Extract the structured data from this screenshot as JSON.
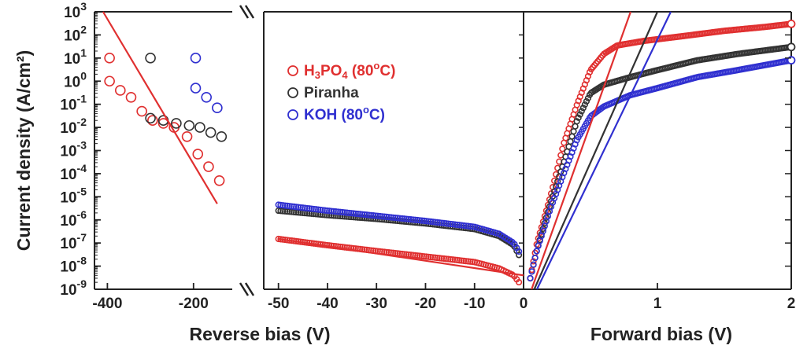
{
  "chart_data": {
    "type": "scatter",
    "ylabel": "Current density (A/cm²)",
    "y_scale": "log",
    "ylim": [
      1e-09,
      1000
    ],
    "y_ticks": [
      {
        "value": 1e-09,
        "base": "10",
        "exp": "-9"
      },
      {
        "value": 1e-08,
        "base": "10",
        "exp": "-8"
      },
      {
        "value": 1e-07,
        "base": "10",
        "exp": "-7"
      },
      {
        "value": 1e-06,
        "base": "10",
        "exp": "-6"
      },
      {
        "value": 1e-05,
        "base": "10",
        "exp": "-5"
      },
      {
        "value": 0.0001,
        "base": "10",
        "exp": "-4"
      },
      {
        "value": 0.001,
        "base": "10",
        "exp": "-3"
      },
      {
        "value": 0.01,
        "base": "10",
        "exp": "-2"
      },
      {
        "value": 0.1,
        "base": "10",
        "exp": "-1"
      },
      {
        "value": 1,
        "base": "10",
        "exp": "0"
      },
      {
        "value": 10,
        "base": "10",
        "exp": "1"
      },
      {
        "value": 100,
        "base": "10",
        "exp": "2"
      },
      {
        "value": 1000,
        "base": "10",
        "exp": "3"
      }
    ],
    "panels": [
      {
        "id": "reverse-breakdown",
        "xlim": [
          -430,
          -110
        ],
        "xticks": [
          -400,
          -200
        ],
        "xtick_labels": [
          "-400",
          "-200"
        ]
      },
      {
        "id": "reverse-low",
        "xlim": [
          -53,
          0
        ],
        "xticks": [
          -50,
          -40,
          -30,
          -20,
          -10,
          0
        ],
        "xtick_labels": [
          "-50",
          "-40",
          "-30",
          "-20",
          "-10",
          "0"
        ]
      },
      {
        "id": "forward",
        "xlim": [
          0,
          2
        ],
        "xticks": [
          0,
          1,
          2
        ],
        "xtick_labels": [
          "",
          "1",
          "2"
        ]
      }
    ],
    "xlabels": {
      "reverse": "Reverse bias (V)",
      "forward": "Forward bias (V)"
    },
    "legend": {
      "placement": "top-left of reverse-low panel",
      "entries": [
        {
          "base": "H",
          "sub": "3",
          "mid": "PO",
          "sub2": "4",
          "rest": " (80",
          "sup": "o",
          "tail": "C)",
          "color": "#e03030"
        },
        {
          "base": "Piranha",
          "sub": "",
          "mid": "",
          "sub2": "",
          "rest": "",
          "sup": "",
          "tail": "",
          "color": "#333333"
        },
        {
          "base": "KOH (80",
          "sub": "",
          "mid": "",
          "sub2": "",
          "rest": "",
          "sup": "o",
          "tail": "C)",
          "color": "#3030d0"
        }
      ]
    },
    "series": [
      {
        "name": "H3PO4 (80oC)",
        "color": "#e03030",
        "breakdown_points": [
          [
            -395,
            10
          ],
          [
            -395,
            1
          ],
          [
            -370,
            0.4
          ],
          [
            -345,
            0.2
          ],
          [
            -320,
            0.05
          ],
          [
            -295,
            0.02
          ],
          [
            -270,
            0.015
          ],
          [
            -245,
            0.01
          ],
          [
            -215,
            0.004
          ],
          [
            -190,
            0.0007
          ],
          [
            -165,
            0.0002
          ],
          [
            -140,
            5e-05
          ]
        ],
        "breakdown_fit": [
          [
            -410,
            1000
          ],
          [
            -145,
            5e-06
          ]
        ],
        "reverse_curve": [
          [
            -50,
            1.5e-07
          ],
          [
            -40,
            8e-08
          ],
          [
            -30,
            4.5e-08
          ],
          [
            -20,
            2.6e-08
          ],
          [
            -10,
            1.5e-08
          ],
          [
            -5,
            8e-09
          ],
          [
            -2,
            4e-09
          ],
          [
            -0.5,
            1.5e-09
          ]
        ],
        "reverse_fit": [
          [
            -50,
            1.5e-07
          ],
          [
            0,
            4e-09
          ]
        ],
        "forward_curve": [
          [
            0.05,
            3e-09
          ],
          [
            0.1,
            1e-07
          ],
          [
            0.2,
            1e-05
          ],
          [
            0.3,
            0.002
          ],
          [
            0.4,
            0.1
          ],
          [
            0.5,
            3
          ],
          [
            0.6,
            15
          ],
          [
            0.7,
            35
          ],
          [
            0.9,
            55
          ],
          [
            1.2,
            90
          ],
          [
            1.5,
            150
          ],
          [
            1.8,
            220
          ],
          [
            2.0,
            300
          ]
        ],
        "forward_fit": [
          [
            0.06,
            1e-09
          ],
          [
            0.8,
            1000
          ]
        ]
      },
      {
        "name": "Piranha",
        "color": "#333333",
        "breakdown_points": [
          [
            -300,
            10
          ],
          [
            -300,
            0.025
          ],
          [
            -270,
            0.02
          ],
          [
            -240,
            0.015
          ],
          [
            -210,
            0.012
          ],
          [
            -185,
            0.01
          ],
          [
            -160,
            0.006
          ],
          [
            -135,
            0.004
          ]
        ],
        "reverse_curve": [
          [
            -50,
            2.5e-06
          ],
          [
            -40,
            1.6e-06
          ],
          [
            -30,
            1.1e-06
          ],
          [
            -20,
            7e-07
          ],
          [
            -10,
            4e-07
          ],
          [
            -5,
            2e-07
          ],
          [
            -2,
            8e-08
          ],
          [
            -0.5,
            2e-08
          ]
        ],
        "forward_curve": [
          [
            0.05,
            3e-09
          ],
          [
            0.1,
            5e-08
          ],
          [
            0.2,
            5e-06
          ],
          [
            0.3,
            0.0003
          ],
          [
            0.4,
            0.02
          ],
          [
            0.5,
            0.3
          ],
          [
            0.6,
            0.7
          ],
          [
            0.8,
            1.5
          ],
          [
            1.0,
            3
          ],
          [
            1.3,
            8
          ],
          [
            1.6,
            15
          ],
          [
            2.0,
            30
          ]
        ],
        "forward_fit": [
          [
            0.08,
            1e-09
          ],
          [
            1.0,
            1000
          ]
        ]
      },
      {
        "name": "KOH (80oC)",
        "color": "#3030d0",
        "breakdown_points": [
          [
            -195,
            10
          ],
          [
            -195,
            0.5
          ],
          [
            -170,
            0.2
          ],
          [
            -145,
            0.07
          ]
        ],
        "reverse_curve": [
          [
            -50,
            4.5e-06
          ],
          [
            -40,
            2.5e-06
          ],
          [
            -30,
            1.5e-06
          ],
          [
            -20,
            9e-07
          ],
          [
            -10,
            5e-07
          ],
          [
            -5,
            2.5e-07
          ],
          [
            -2,
            1e-07
          ],
          [
            -0.5,
            3e-08
          ]
        ],
        "forward_curve": [
          [
            0.05,
            3e-09
          ],
          [
            0.1,
            5e-08
          ],
          [
            0.2,
            3e-06
          ],
          [
            0.3,
            0.0001
          ],
          [
            0.4,
            0.003
          ],
          [
            0.5,
            0.03
          ],
          [
            0.6,
            0.08
          ],
          [
            0.8,
            0.25
          ],
          [
            1.0,
            0.5
          ],
          [
            1.3,
            1.5
          ],
          [
            1.6,
            3
          ],
          [
            2.0,
            8
          ]
        ],
        "forward_fit": [
          [
            0.1,
            1e-09
          ],
          [
            1.1,
            1000
          ]
        ]
      }
    ]
  }
}
